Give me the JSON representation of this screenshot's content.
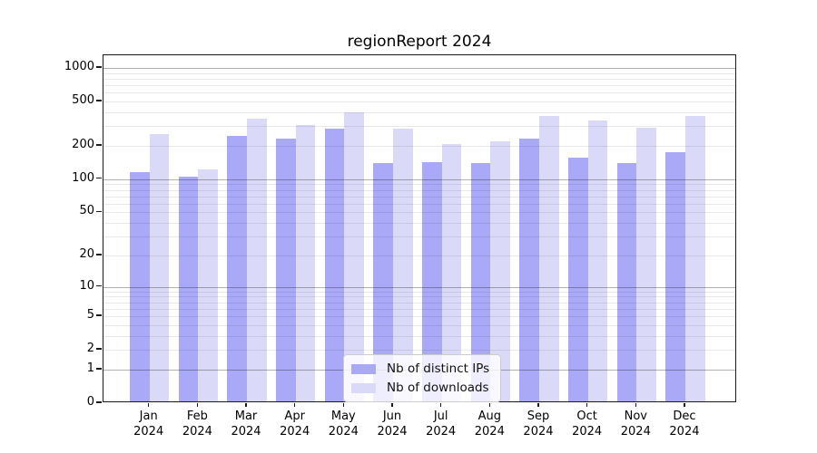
{
  "chart_data": {
    "type": "bar",
    "title": "regionReport 2024",
    "categories": [
      "Jan 2024",
      "Feb 2024",
      "Mar 2024",
      "Apr 2024",
      "May 2024",
      "Jun 2024",
      "Jul 2024",
      "Aug 2024",
      "Sep 2024",
      "Oct 2024",
      "Nov 2024",
      "Dec 2024"
    ],
    "series": [
      {
        "name": "Nb of distinct IPs",
        "color": "#a9a9f8",
        "values": [
          112,
          102,
          237,
          224,
          273,
          135,
          138,
          135,
          225,
          151,
          135,
          168
        ]
      },
      {
        "name": "Nb of downloads",
        "color": "#dadaf8",
        "values": [
          246,
          119,
          338,
          295,
          388,
          276,
          198,
          213,
          357,
          326,
          279,
          357
        ]
      }
    ],
    "xlabel": "",
    "ylabel": "",
    "yscale": "log1p",
    "yticks": [
      1000,
      500,
      200,
      100,
      50,
      20,
      10,
      5,
      2,
      1,
      0
    ],
    "ylim": [
      0,
      1300
    ],
    "grid": "on",
    "legend_position": "bottom-center"
  }
}
